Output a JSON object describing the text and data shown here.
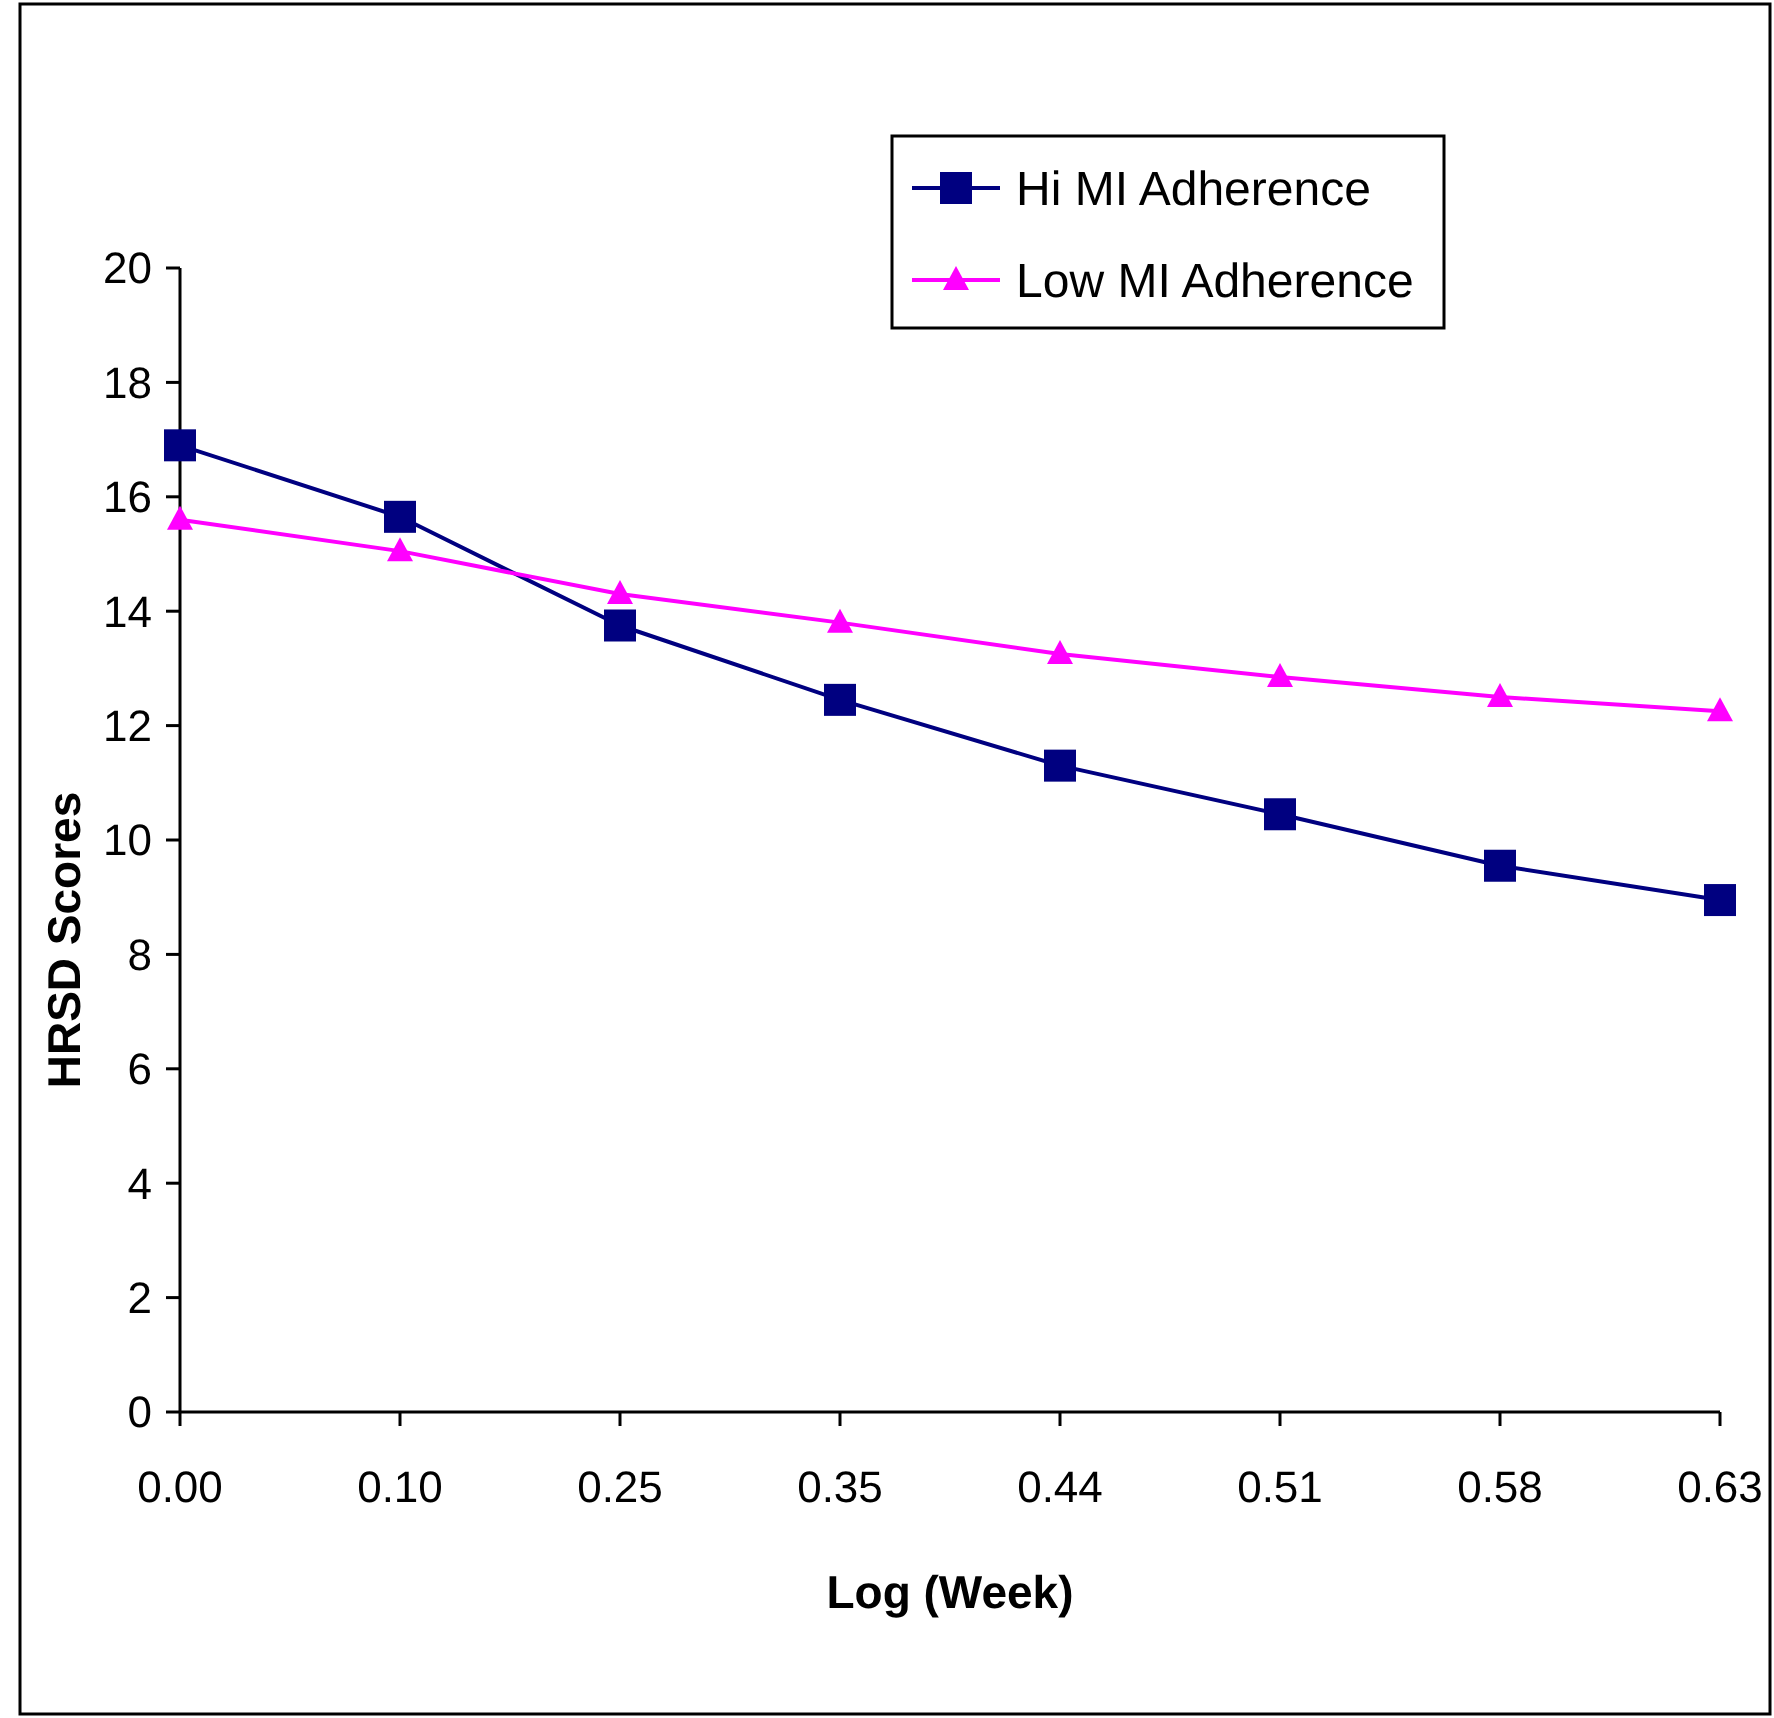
{
  "chart_data": {
    "type": "line",
    "xlabel": "Log (Week)",
    "ylabel": "HRSD Scores",
    "categories": [
      "0.00",
      "0.10",
      "0.25",
      "0.35",
      "0.44",
      "0.51",
      "0.58",
      "0.63"
    ],
    "ylim": [
      0,
      20
    ],
    "yticks": [
      0,
      2,
      4,
      6,
      8,
      10,
      12,
      14,
      16,
      18,
      20
    ],
    "legend": "top right",
    "series": [
      {
        "name": "Hi MI Adherence",
        "color": "#000080",
        "marker": "square",
        "values": [
          16.9,
          15.65,
          13.75,
          12.45,
          11.3,
          10.45,
          9.55,
          8.95
        ]
      },
      {
        "name": "Low MI Adherence",
        "color": "#ff00ff",
        "marker": "triangle",
        "values": [
          15.6,
          15.05,
          14.3,
          13.8,
          13.25,
          12.85,
          12.5,
          12.25
        ]
      }
    ]
  }
}
